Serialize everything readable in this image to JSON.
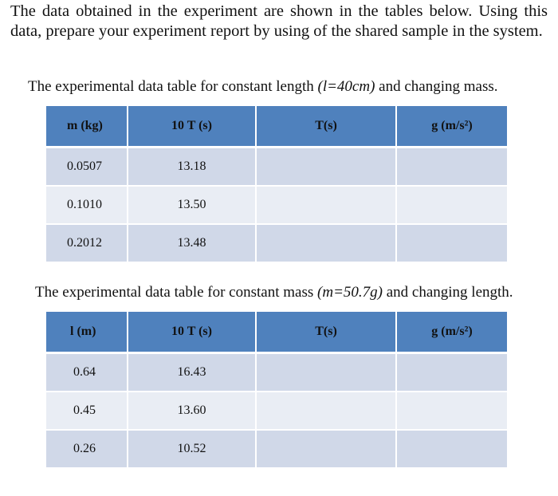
{
  "intro_text": "The data obtained in the experiment are shown in the tables below. Using this data, prepare your experiment report by using of the shared sample in the system.",
  "table1": {
    "caption_prefix": "The experimental data table for constant length ",
    "caption_italic": "(l=40cm)",
    "caption_suffix": " and changing mass.",
    "headers": [
      "m (kg)",
      "10 T (s)",
      "T(s)",
      "g  (m/s²)"
    ],
    "rows": [
      [
        "0.0507",
        "13.18",
        "",
        ""
      ],
      [
        "0.1010",
        "13.50",
        "",
        ""
      ],
      [
        "0.2012",
        "13.48",
        "",
        ""
      ]
    ]
  },
  "table2": {
    "caption_prefix": "The experimental data table for constant mass ",
    "caption_italic": "(m=50.7g)",
    "caption_suffix": " and changing length.",
    "headers": [
      "l (m)",
      "10 T (s)",
      "T(s)",
      "g  (m/s²)"
    ],
    "rows": [
      [
        "0.64",
        "16.43",
        "",
        ""
      ],
      [
        "0.45",
        "13.60",
        "",
        ""
      ],
      [
        "0.26",
        "10.52",
        "",
        ""
      ]
    ]
  },
  "colors": {
    "header_fill": "#4f81bd",
    "row_fill_odd": "#d0d8e8",
    "row_fill_even": "#e9edf4"
  }
}
